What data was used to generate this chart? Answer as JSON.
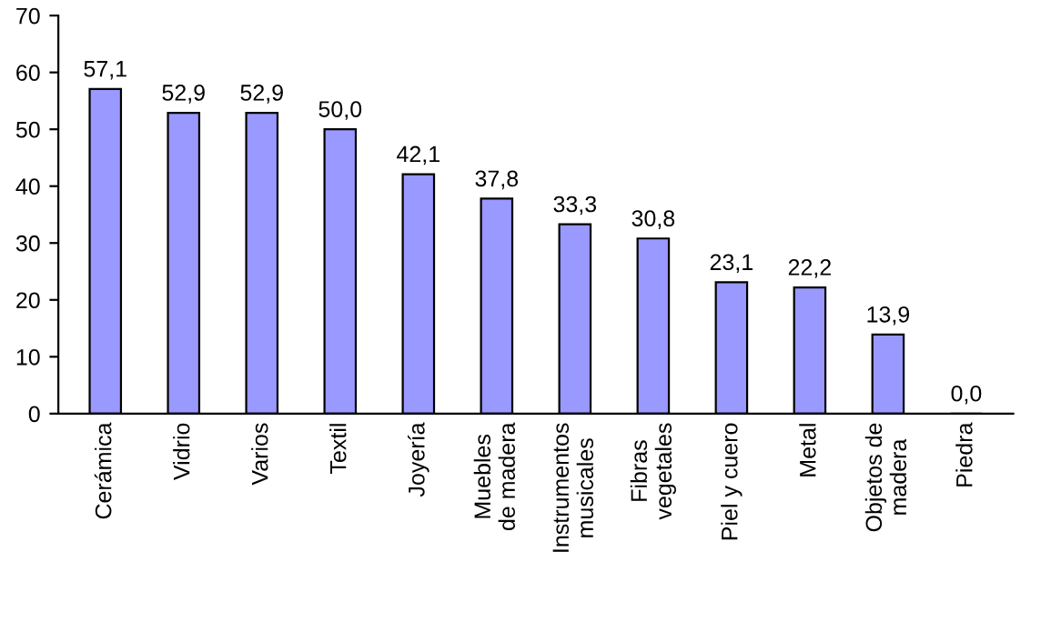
{
  "chart_data": {
    "type": "bar",
    "categories": [
      "Cerámica",
      "Vidrio",
      "Varios",
      "Textil",
      "Joyería",
      "Muebles\nde madera",
      "Instrumentos\nmusicales",
      "Fibras\nvegetales",
      "Piel y cuero",
      "Metal",
      "Objetos de\nmadera",
      "Piedra"
    ],
    "values": [
      57.1,
      52.9,
      52.9,
      50.0,
      42.1,
      37.8,
      33.3,
      30.8,
      23.1,
      22.2,
      13.9,
      0.0
    ],
    "value_labels": [
      "57,1",
      "52,9",
      "52,9",
      "50,0",
      "42,1",
      "37,8",
      "33,3",
      "30,8",
      "23,1",
      "22,2",
      "13,9",
      "0,0"
    ],
    "color": "#9999ff",
    "ylim": [
      0,
      70
    ],
    "yticks": [
      0,
      10,
      20,
      30,
      40,
      50,
      60,
      70
    ],
    "grid": false
  }
}
